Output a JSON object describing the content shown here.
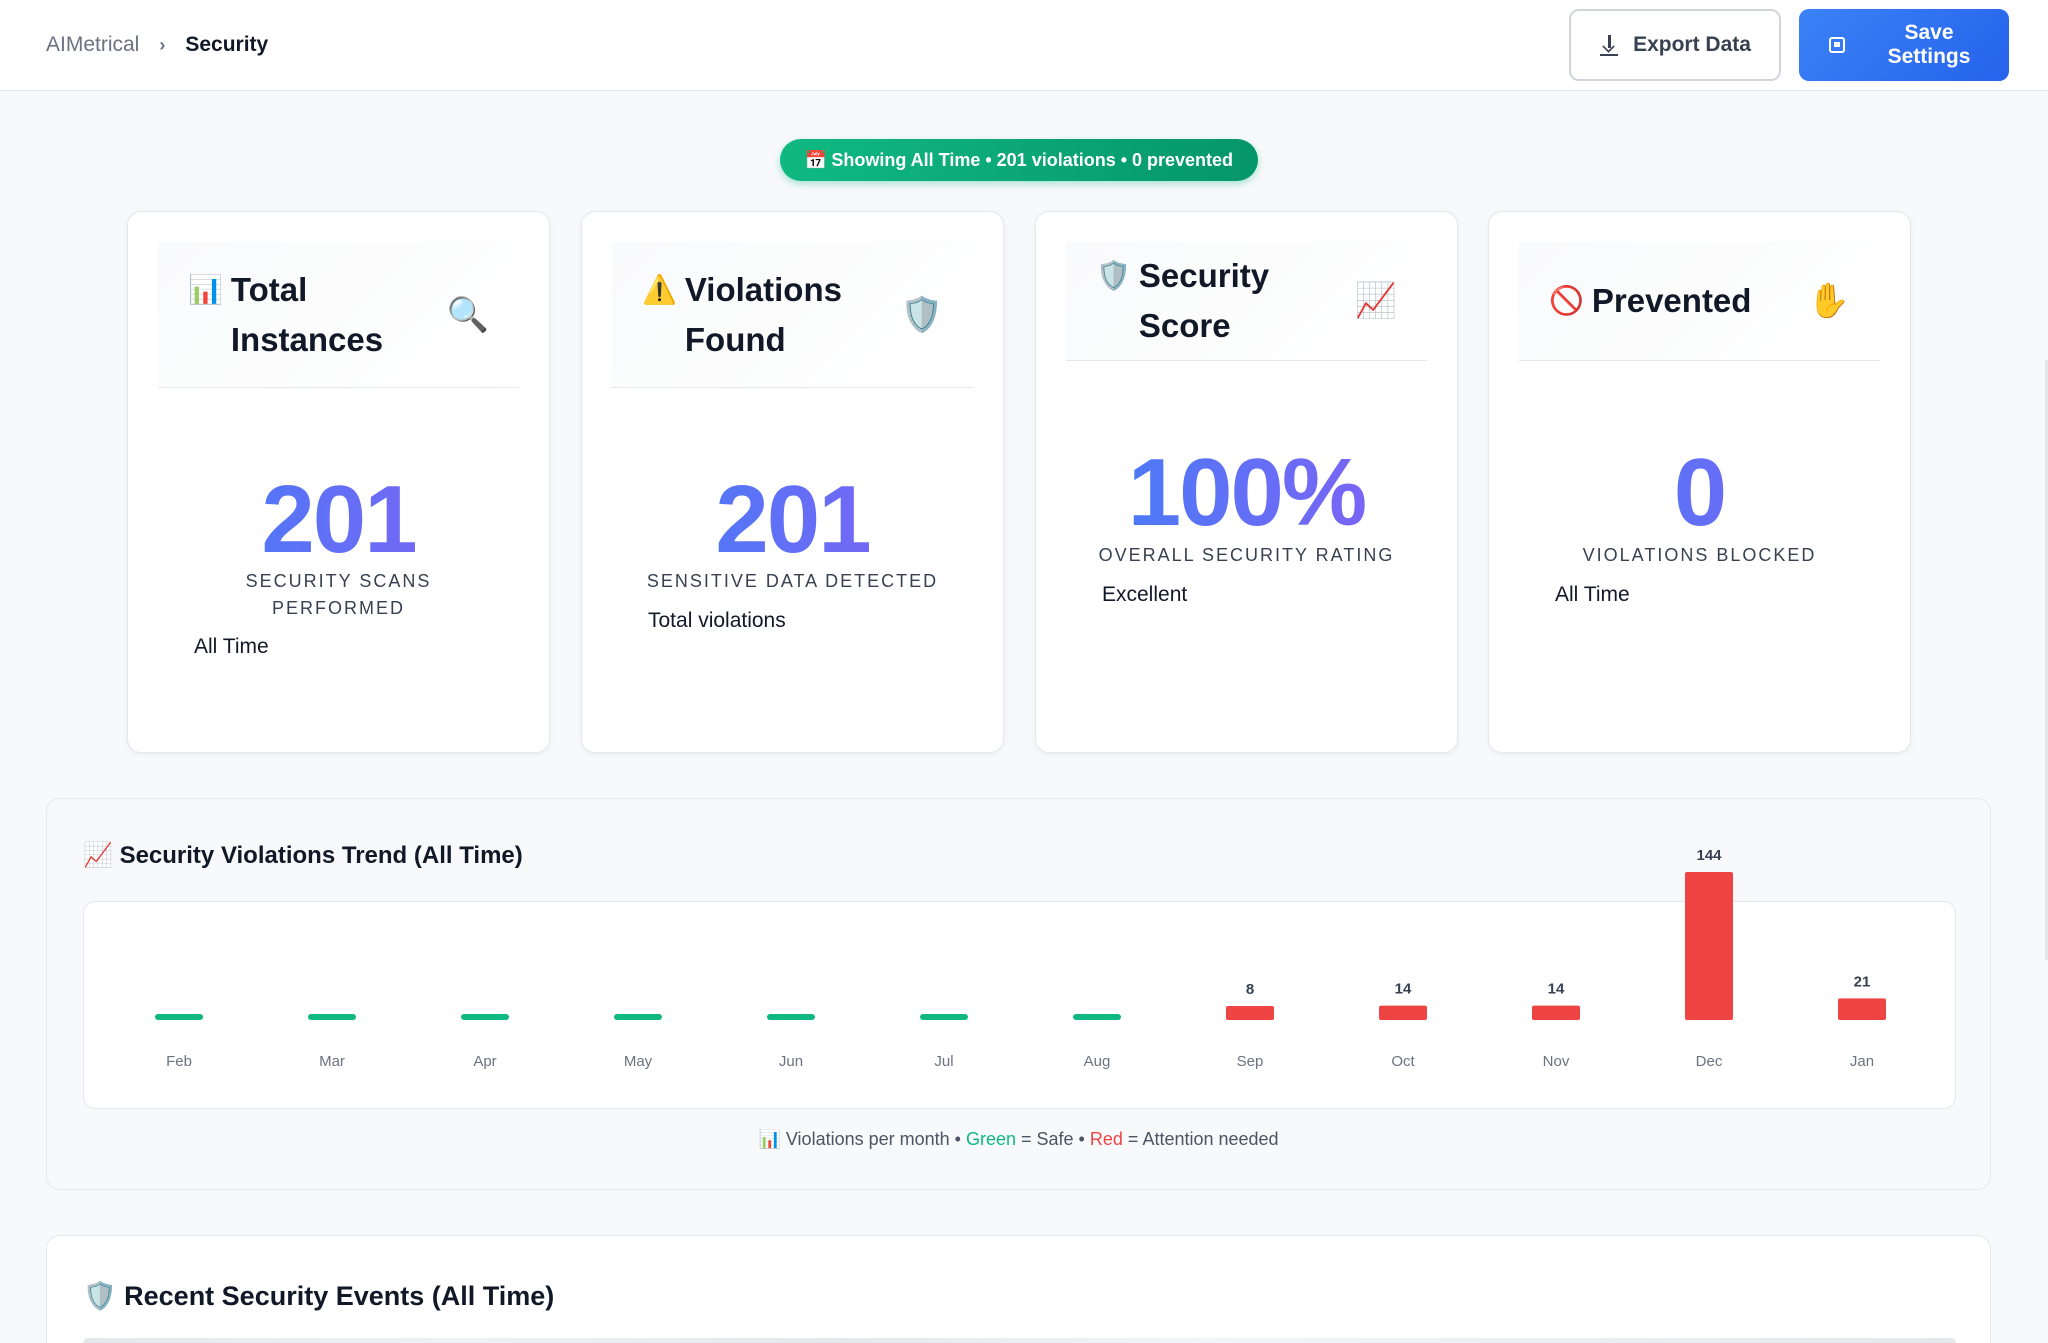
{
  "header": {
    "breadcrumb_root": "AIMetrical",
    "breadcrumb_sep": "›",
    "breadcrumb_current": "Security",
    "export_label": "Export Data",
    "save_label": "Save Settings"
  },
  "filter_pill": {
    "icon": "📅",
    "text": "Showing All Time • 201 violations • 0 prevented"
  },
  "cards": [
    {
      "lead_icon": "📊",
      "title": "Total Instances",
      "side_icon": "🔍",
      "value": "201",
      "label": "SECURITY SCANS PERFORMED",
      "note": "All Time"
    },
    {
      "lead_icon": "⚠️",
      "title": "Violations Found",
      "side_icon": "🛡️",
      "value": "201",
      "label": "SENSITIVE DATA DETECTED",
      "note": "Total violations"
    },
    {
      "lead_icon": "🛡️",
      "title": "Security Score",
      "side_icon": "📈",
      "value": "100%",
      "label": "OVERALL SECURITY RATING",
      "note": "Excellent"
    },
    {
      "lead_icon": "🚫",
      "title": "Prevented",
      "side_icon": "✋",
      "value": "0",
      "label": "VIOLATIONS BLOCKED",
      "note": "All Time"
    }
  ],
  "trend": {
    "title_icon": "📈",
    "title": "Security Violations Trend (All Time)",
    "legend": {
      "icon": "📊",
      "prefix": "Violations per month •",
      "green_word": "Green",
      "green_text": "= Safe •",
      "red_word": "Red",
      "red_text": "= Attention needed"
    }
  },
  "chart_data": {
    "type": "bar",
    "categories": [
      "Feb",
      "Mar",
      "Apr",
      "May",
      "Jun",
      "Jul",
      "Aug",
      "Sep",
      "Oct",
      "Nov",
      "Dec",
      "Jan"
    ],
    "values": [
      0,
      0,
      0,
      0,
      0,
      0,
      0,
      8,
      14,
      14,
      144,
      21
    ],
    "value_labels": [
      "",
      "",
      "",
      "",
      "",
      "",
      "",
      "8",
      "14",
      "14",
      "144",
      "21"
    ],
    "colors": {
      "safe": "#10b981",
      "attention": "#ef4444"
    },
    "title": "",
    "xlabel": "",
    "ylabel": ""
  },
  "events": {
    "title_icon": "🛡️",
    "title": "Recent Security Events (All Time)"
  }
}
